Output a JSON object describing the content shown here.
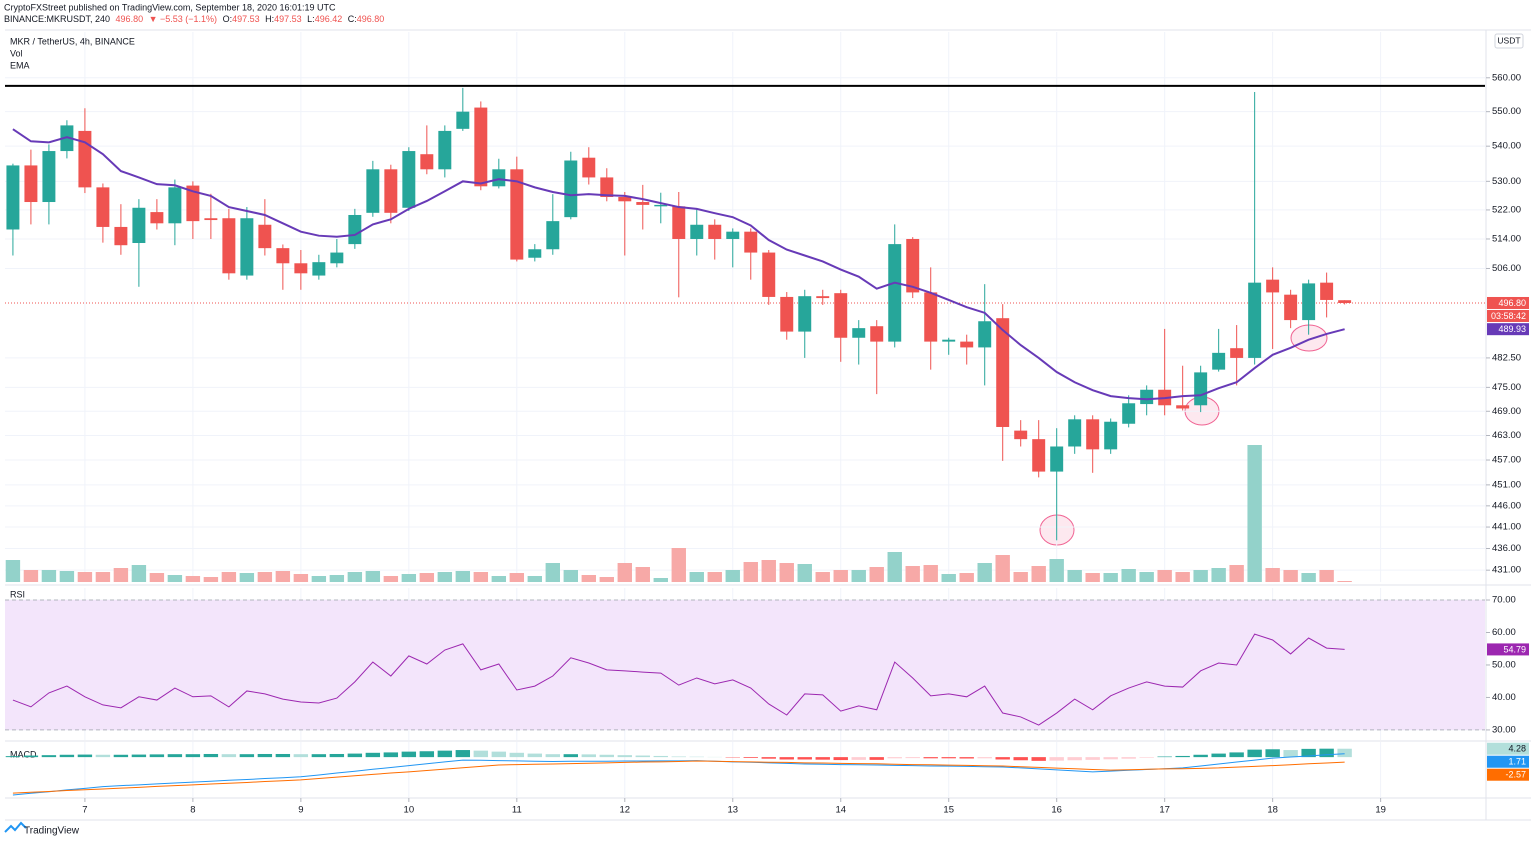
{
  "header": {
    "publisher": "CryptoFXStreet published on TradingView.com, September 18, 2020 16:01:19 UTC",
    "symbol": "BINANCE:MKRUSDT, 240",
    "last": "496.80",
    "change": "▼ −5.53 (−1.1%)",
    "ohlc": [
      [
        "O:",
        "497.53"
      ],
      [
        "H:",
        "497.53"
      ],
      [
        "L:",
        "496.42"
      ],
      [
        "C:",
        "496.80"
      ]
    ]
  },
  "logo": "TradingView",
  "chart_data": [
    {
      "type": "candlestick",
      "title": "MKR / TetherUS, 4h, BINANCE",
      "currency": "USDT",
      "up_color": "#26a69a",
      "down_color": "#ef5350",
      "log_scale": true,
      "grid": true,
      "xlim": [
        -0.44,
        81.8
      ],
      "xticks": [
        {
          "value": 4,
          "label": "7"
        },
        {
          "value": 10,
          "label": "8"
        },
        {
          "value": 16,
          "label": "9"
        },
        {
          "value": 22,
          "label": "10"
        },
        {
          "value": 28,
          "label": "11"
        },
        {
          "value": 34,
          "label": "12"
        },
        {
          "value": 40,
          "label": "13"
        },
        {
          "value": 46,
          "label": "14"
        },
        {
          "value": 52,
          "label": "15"
        },
        {
          "value": 58,
          "label": "16"
        },
        {
          "value": 64,
          "label": "17"
        },
        {
          "value": 70,
          "label": "18"
        },
        {
          "value": 76,
          "label": "19"
        }
      ],
      "ylim": [
        428.3,
        573.8
      ],
      "yticks": [
        {
          "value": 431,
          "label": "431.00"
        },
        {
          "value": 436,
          "label": "436.00"
        },
        {
          "value": 441,
          "label": "441.00"
        },
        {
          "value": 446,
          "label": "446.00"
        },
        {
          "value": 451,
          "label": "451.00"
        },
        {
          "value": 457,
          "label": "457.00"
        },
        {
          "value": 463,
          "label": "463.00"
        },
        {
          "value": 469,
          "label": "469.00"
        },
        {
          "value": 475,
          "label": "475.00"
        },
        {
          "value": 482.5,
          "label": "482.50"
        },
        {
          "value": 506,
          "label": "506.00"
        },
        {
          "value": 514,
          "label": "514.00"
        },
        {
          "value": 522,
          "label": "522.00"
        },
        {
          "value": 530,
          "label": "530.00"
        },
        {
          "value": 540,
          "label": "540.00"
        },
        {
          "value": 550,
          "label": "550.00"
        },
        {
          "value": 560,
          "label": "560.00"
        }
      ],
      "open": [
        516.6,
        534.5,
        524.2,
        538.6,
        544.4,
        528.3,
        517.3,
        512.9,
        521.4,
        518.3,
        528.8,
        519.7,
        519.7,
        504.1,
        517.9,
        511.5,
        507.4,
        504.1,
        507.4,
        512.6,
        521.2,
        533.4,
        522.6,
        537.7,
        533.4,
        545,
        551.2,
        528.6,
        533.4,
        508.9,
        511.2,
        520,
        536.7,
        531.1,
        525.6,
        524.2,
        523,
        523,
        514,
        517.9,
        514,
        516,
        510.3,
        498.4,
        489.3,
        498.6,
        499.4,
        487.7,
        490.7,
        486.7,
        514,
        499.6,
        486.7,
        486.7,
        485.2,
        492.8,
        464.2,
        462.1,
        454.2,
        460.3,
        467,
        459.6,
        465.9,
        470.8,
        474.4,
        470.5,
        470.5,
        479.5,
        485,
        482.5,
        503,
        499,
        492.3,
        502.2,
        497.53
      ],
      "high": [
        535,
        539,
        540.5,
        547.5,
        551,
        529.4,
        523.6,
        525,
        525,
        530.5,
        530,
        526.5,
        522.3,
        522.8,
        525,
        512.5,
        511,
        509.7,
        514,
        522.3,
        535.8,
        534.7,
        539.7,
        546,
        546,
        557,
        553,
        536.4,
        537,
        512.6,
        526.4,
        538.4,
        539.7,
        533.7,
        527,
        529,
        526.8,
        527,
        522.3,
        519.4,
        516.9,
        516.9,
        511,
        499.7,
        500.3,
        500.3,
        500.3,
        492.3,
        492.3,
        518,
        514.5,
        506.3,
        487.7,
        488.5,
        501.8,
        496.5,
        466.8,
        466.8,
        464.8,
        468,
        468,
        467.2,
        473,
        475.5,
        490,
        480.5,
        480.5,
        490,
        491,
        555.8,
        506.3,
        500.3,
        503,
        504.9,
        497.53
      ],
      "low": [
        509.5,
        518,
        518,
        536.5,
        526.7,
        513,
        509.7,
        501.1,
        516.6,
        512.3,
        514,
        514,
        503,
        503,
        509.5,
        500.3,
        500.3,
        503,
        506.3,
        511.3,
        520.1,
        518.3,
        521.7,
        532,
        531.1,
        544.4,
        527.5,
        528,
        507.9,
        507.9,
        509.7,
        519.4,
        529.1,
        524.4,
        509.5,
        516.6,
        518.3,
        498.3,
        509.5,
        508.4,
        506.3,
        503,
        496.3,
        487.2,
        482.5,
        496.3,
        481.5,
        480.8,
        473.3,
        485.2,
        498.1,
        479.5,
        483.3,
        480.8,
        475.5,
        456.8,
        460.3,
        452.8,
        437.9,
        458.5,
        453.9,
        458.5,
        465,
        468,
        468,
        469.2,
        468.8,
        479,
        475.5,
        480.8,
        484.8,
        490.2,
        488.5,
        493,
        496.42
      ],
      "close": [
        534.5,
        524.2,
        538.6,
        546,
        528.3,
        517.3,
        512.3,
        522.6,
        518.3,
        528.3,
        518.9,
        519.2,
        504.7,
        519.7,
        511.5,
        507.4,
        504.7,
        507.7,
        510.3,
        520.6,
        533.4,
        521.2,
        538.6,
        533.4,
        544.4,
        550,
        528.6,
        533.4,
        508.4,
        511.2,
        518.9,
        535.9,
        531.1,
        525.6,
        524.4,
        523.4,
        523.4,
        514,
        517.9,
        514,
        516,
        510.3,
        498.4,
        489.3,
        498.6,
        498.1,
        487.7,
        490.2,
        486.7,
        512.6,
        499.6,
        486.7,
        487.2,
        485.2,
        492,
        465.1,
        462.1,
        454.2,
        460.3,
        467,
        459.6,
        466.4,
        471,
        474.4,
        470.5,
        469.7,
        478.8,
        483.8,
        482.5,
        502.2,
        499.6,
        492.3,
        502,
        497.6,
        496.8
      ],
      "series": [
        {
          "name": "EMA",
          "color": "#673ab7",
          "values": [
            544.9,
            541.4,
            541.1,
            542.6,
            541.1,
            537.7,
            532.9,
            531.1,
            529.2,
            528.9,
            527.2,
            525.9,
            522.8,
            521.7,
            520.6,
            518.3,
            516,
            514.9,
            514.6,
            515.1,
            518,
            519.4,
            522.3,
            524.5,
            527.2,
            530,
            529.4,
            530.6,
            530,
            528.3,
            527,
            526.1,
            526.4,
            526.1,
            525.9,
            525,
            523.9,
            522.8,
            522.3,
            521.1,
            520,
            517.7,
            513.7,
            511.1,
            509.5,
            507.9,
            505.7,
            503.8,
            500.6,
            502.2,
            501.1,
            499.5,
            497.6,
            495.7,
            494.2,
            489.7,
            485.8,
            482.5,
            478.9,
            476.3,
            474.3,
            472.8,
            472.3,
            472,
            472.3,
            472.8,
            473,
            474.8,
            476.3,
            479.9,
            483.3,
            485.1,
            487.2,
            488.7,
            489.93
          ]
        }
      ],
      "volume": {
        "name": "Vol",
        "up_color": "#93d2ca",
        "down_color": "#f7a9a7",
        "ylim": [
          0,
          550
        ],
        "values": [
          22,
          12,
          12,
          11,
          10,
          10,
          14,
          17,
          9,
          7,
          6,
          5,
          10,
          9,
          10,
          11,
          8,
          6,
          7,
          10,
          11,
          6,
          8,
          9,
          10,
          11,
          10,
          6,
          9,
          6,
          19,
          12,
          7,
          5,
          19,
          15,
          4,
          34,
          10,
          10,
          12,
          20,
          22,
          19,
          18,
          10,
          12,
          12,
          15,
          30,
          16,
          17,
          8,
          9,
          19,
          27,
          10,
          16,
          23,
          12,
          9,
          9,
          13,
          10,
          12,
          10,
          12,
          14,
          17,
          137,
          14,
          12,
          9,
          12,
          1
        ]
      },
      "hline": {
        "value": 557.6,
        "color": "#000000"
      },
      "price_line": {
        "value": 496.8,
        "label": "496.80",
        "countdown": "03:58:42",
        "color": "#ef5350"
      }
    },
    {
      "type": "line",
      "title": "RSI",
      "color": "#9c27b0",
      "band_color": "#f3e5fb",
      "grid": true,
      "ylim": [
        26.9,
        73.7
      ],
      "yticks": [
        {
          "value": 30,
          "label": "30.00"
        },
        {
          "value": 40,
          "label": "40.00"
        },
        {
          "value": 50,
          "label": "50.00"
        },
        {
          "value": 60,
          "label": "60.00"
        },
        {
          "value": 70,
          "label": "70.00"
        }
      ],
      "values": [
        39.2,
        37.1,
        41.4,
        43.5,
        40.2,
        37.7,
        36.8,
        40.2,
        39.2,
        42.9,
        40.2,
        40.5,
        37.1,
        42,
        41.1,
        39.5,
        38.6,
        38.3,
        39.8,
        44.8,
        50.9,
        46.6,
        52.8,
        50.3,
        54.6,
        56.5,
        48.5,
        50.3,
        42.3,
        43.5,
        46.6,
        52.2,
        50.6,
        48.5,
        48.2,
        47.8,
        47.5,
        43.8,
        46,
        44.2,
        45.4,
        42.9,
        38,
        34.6,
        41.1,
        40.8,
        35.8,
        37.4,
        36.2,
        50.9,
        46,
        40.5,
        41.1,
        40.2,
        43.5,
        35.2,
        34,
        31.5,
        35.2,
        39.5,
        36.2,
        40.5,
        42.9,
        44.8,
        43.5,
        43.2,
        48.2,
        50.6,
        50,
        59.5,
        57.7,
        53.4,
        58.3,
        55.2,
        54.79
      ]
    },
    {
      "type": "macd",
      "title": "MACD",
      "ylim": [
        -20.3,
        7.7
      ],
      "series": [
        {
          "style": "histogram",
          "colors": {
            "up_rising": "#26a69a",
            "up_falling": "#b2dfdb",
            "down_falling": "#ff5252",
            "down_rising": "#ffcdd2"
          },
          "values": [
            0.5,
            0.8,
            1,
            1.2,
            1.3,
            1.2,
            1.2,
            1.3,
            1.4,
            1.5,
            1.5,
            1.6,
            1.5,
            1.5,
            1.6,
            1.6,
            1.5,
            1.5,
            1.6,
            1.8,
            2.2,
            2.4,
            2.8,
            3,
            3.3,
            3.6,
            3.3,
            2.8,
            2.2,
            1.8,
            1.5,
            1.5,
            1.4,
            1.2,
            1,
            0.8,
            0.6,
            0.3,
            0.2,
            0.1,
            -0.2,
            -0.4,
            -0.8,
            -1.2,
            -1.2,
            -1.3,
            -1.5,
            -1.4,
            -1.4,
            -0.6,
            -0.5,
            -0.6,
            -0.6,
            -0.7,
            -0.6,
            -1.2,
            -1.6,
            -1.9,
            -1.8,
            -1.6,
            -1.4,
            -1.1,
            -0.8,
            -0.3,
            0.3,
            0.6,
            1.2,
            1.8,
            2.4,
            3.8,
            4,
            3.6,
            4.2,
            4.3,
            4.28
          ]
        },
        {
          "style": "line",
          "color": "#2196f3",
          "values": [
            -19.3,
            -18.4,
            -17.6,
            -16.7,
            -15.9,
            -15,
            -14.5,
            -14.1,
            -13.6,
            -13.2,
            -12.7,
            -12.3,
            -11.8,
            -11.4,
            -10.9,
            -10.5,
            -10,
            -9.1,
            -8.1,
            -7.2,
            -6.2,
            -5.3,
            -4.3,
            -3.4,
            -2.4,
            -1.5,
            -1.6,
            -1.8,
            -1.9,
            -2.1,
            -2.2,
            -2.1,
            -2.1,
            -2.1,
            -2,
            -2,
            -1.9,
            -1.9,
            -1.8,
            -2.1,
            -2.4,
            -2.6,
            -2.9,
            -3.2,
            -3.5,
            -3.6,
            -3.8,
            -3.9,
            -4,
            -4.2,
            -4.3,
            -4.5,
            -4.6,
            -4.7,
            -4.9,
            -5,
            -5.5,
            -6,
            -6.5,
            -7,
            -7.5,
            -7.1,
            -6.7,
            -6.3,
            -5.9,
            -5.5,
            -4.5,
            -3.5,
            -2.5,
            -1.5,
            -0.5,
            0.05,
            0.6,
            1.2,
            1.71
          ]
        },
        {
          "style": "line",
          "color": "#ff6d00",
          "values": [
            -18.3,
            -17.9,
            -17.5,
            -17.0,
            -16.6,
            -16.2,
            -15.8,
            -15.4,
            -14.9,
            -14.5,
            -14.1,
            -13.7,
            -13.3,
            -12.9,
            -12.4,
            -12.0,
            -11.6,
            -10.9,
            -10.2,
            -9.5,
            -8.8,
            -8.1,
            -7.5,
            -6.8,
            -6.1,
            -5.4,
            -4.7,
            -4,
            -3.8,
            -3.6,
            -3.5,
            -3.3,
            -3.1,
            -2.9,
            -2.7,
            -2.5,
            -2.4,
            -2.2,
            -2,
            -2.1,
            -2.3,
            -2.4,
            -2.6,
            -2.7,
            -2.9,
            -3,
            -3.2,
            -3.3,
            -3.4,
            -3.6,
            -3.8,
            -3.9,
            -4.1,
            -4.2,
            -4.4,
            -4.5,
            -4.9,
            -5.2,
            -5.6,
            -5.9,
            -6.3,
            -6.6,
            -6.4,
            -6.2,
            -6,
            -5.9,
            -5.7,
            -5.5,
            -5.1,
            -4.7,
            -4.3,
            -3.9,
            -3.4,
            -3,
            -2.57
          ]
        }
      ]
    }
  ]
}
